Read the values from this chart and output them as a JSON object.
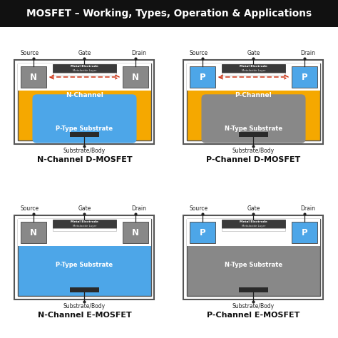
{
  "title": "MOSFET – Working, Types, Operation & Applications",
  "title_bg": "#111111",
  "title_color": "#ffffff",
  "diagrams": [
    {
      "label": "N-Channel D-MOSFET",
      "substrate_outer_color": "#f5a800",
      "substrate_inner_color": "#4da6e8",
      "substrate_label": "P-Type Substrate",
      "channel_label": "N-Channel",
      "doping_color": "#888888",
      "doping_label": "N",
      "has_channel": true,
      "arrow_color": "#cc2200",
      "has_substrate_blob": true
    },
    {
      "label": "P-Channel D-MOSFET",
      "substrate_outer_color": "#f5a800",
      "substrate_inner_color": "#888888",
      "substrate_label": "N-Type Substrate",
      "channel_label": "P-Channel",
      "doping_color": "#4da6e8",
      "doping_label": "P",
      "has_channel": true,
      "arrow_color": "#cc2200",
      "has_substrate_blob": true
    },
    {
      "label": "N-Channel E-MOSFET",
      "substrate_outer_color": "#4da6e8",
      "substrate_inner_color": "#4da6e8",
      "substrate_label": "P-Type Substrate",
      "channel_label": "",
      "doping_color": "#888888",
      "doping_label": "N",
      "has_channel": false,
      "arrow_color": "#cc2200",
      "has_substrate_blob": false
    },
    {
      "label": "P-Channel E-MOSFET",
      "substrate_outer_color": "#888888",
      "substrate_inner_color": "#888888",
      "substrate_label": "N-Type Substrate",
      "channel_label": "",
      "doping_color": "#4da6e8",
      "doping_label": "P",
      "has_channel": false,
      "arrow_color": "#cc2200",
      "has_substrate_blob": false
    }
  ],
  "bg_color": "#ffffff"
}
